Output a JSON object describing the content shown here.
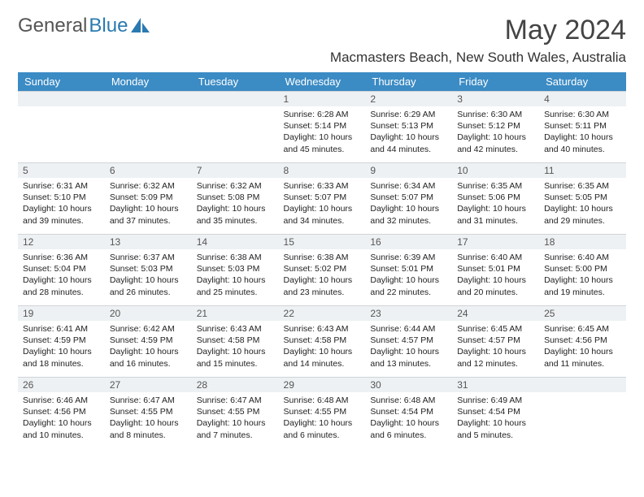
{
  "brand": {
    "name1": "General",
    "name2": "Blue"
  },
  "title": "May 2024",
  "location": "Macmasters Beach, New South Wales, Australia",
  "colors": {
    "header_bg": "#3b8bc4",
    "header_text": "#ffffff",
    "daybar_bg": "#eef1f3",
    "body_bg": "#ffffff",
    "text": "#333333",
    "logo_blue": "#2a7ab0"
  },
  "weekdays": [
    "Sunday",
    "Monday",
    "Tuesday",
    "Wednesday",
    "Thursday",
    "Friday",
    "Saturday"
  ],
  "layout": {
    "columns": 7,
    "rows": 5,
    "first_weekday_index": 3,
    "days_in_month": 31
  },
  "days": {
    "1": {
      "sunrise": "6:28 AM",
      "sunset": "5:14 PM",
      "daylight": "10 hours and 45 minutes."
    },
    "2": {
      "sunrise": "6:29 AM",
      "sunset": "5:13 PM",
      "daylight": "10 hours and 44 minutes."
    },
    "3": {
      "sunrise": "6:30 AM",
      "sunset": "5:12 PM",
      "daylight": "10 hours and 42 minutes."
    },
    "4": {
      "sunrise": "6:30 AM",
      "sunset": "5:11 PM",
      "daylight": "10 hours and 40 minutes."
    },
    "5": {
      "sunrise": "6:31 AM",
      "sunset": "5:10 PM",
      "daylight": "10 hours and 39 minutes."
    },
    "6": {
      "sunrise": "6:32 AM",
      "sunset": "5:09 PM",
      "daylight": "10 hours and 37 minutes."
    },
    "7": {
      "sunrise": "6:32 AM",
      "sunset": "5:08 PM",
      "daylight": "10 hours and 35 minutes."
    },
    "8": {
      "sunrise": "6:33 AM",
      "sunset": "5:07 PM",
      "daylight": "10 hours and 34 minutes."
    },
    "9": {
      "sunrise": "6:34 AM",
      "sunset": "5:07 PM",
      "daylight": "10 hours and 32 minutes."
    },
    "10": {
      "sunrise": "6:35 AM",
      "sunset": "5:06 PM",
      "daylight": "10 hours and 31 minutes."
    },
    "11": {
      "sunrise": "6:35 AM",
      "sunset": "5:05 PM",
      "daylight": "10 hours and 29 minutes."
    },
    "12": {
      "sunrise": "6:36 AM",
      "sunset": "5:04 PM",
      "daylight": "10 hours and 28 minutes."
    },
    "13": {
      "sunrise": "6:37 AM",
      "sunset": "5:03 PM",
      "daylight": "10 hours and 26 minutes."
    },
    "14": {
      "sunrise": "6:38 AM",
      "sunset": "5:03 PM",
      "daylight": "10 hours and 25 minutes."
    },
    "15": {
      "sunrise": "6:38 AM",
      "sunset": "5:02 PM",
      "daylight": "10 hours and 23 minutes."
    },
    "16": {
      "sunrise": "6:39 AM",
      "sunset": "5:01 PM",
      "daylight": "10 hours and 22 minutes."
    },
    "17": {
      "sunrise": "6:40 AM",
      "sunset": "5:01 PM",
      "daylight": "10 hours and 20 minutes."
    },
    "18": {
      "sunrise": "6:40 AM",
      "sunset": "5:00 PM",
      "daylight": "10 hours and 19 minutes."
    },
    "19": {
      "sunrise": "6:41 AM",
      "sunset": "4:59 PM",
      "daylight": "10 hours and 18 minutes."
    },
    "20": {
      "sunrise": "6:42 AM",
      "sunset": "4:59 PM",
      "daylight": "10 hours and 16 minutes."
    },
    "21": {
      "sunrise": "6:43 AM",
      "sunset": "4:58 PM",
      "daylight": "10 hours and 15 minutes."
    },
    "22": {
      "sunrise": "6:43 AM",
      "sunset": "4:58 PM",
      "daylight": "10 hours and 14 minutes."
    },
    "23": {
      "sunrise": "6:44 AM",
      "sunset": "4:57 PM",
      "daylight": "10 hours and 13 minutes."
    },
    "24": {
      "sunrise": "6:45 AM",
      "sunset": "4:57 PM",
      "daylight": "10 hours and 12 minutes."
    },
    "25": {
      "sunrise": "6:45 AM",
      "sunset": "4:56 PM",
      "daylight": "10 hours and 11 minutes."
    },
    "26": {
      "sunrise": "6:46 AM",
      "sunset": "4:56 PM",
      "daylight": "10 hours and 10 minutes."
    },
    "27": {
      "sunrise": "6:47 AM",
      "sunset": "4:55 PM",
      "daylight": "10 hours and 8 minutes."
    },
    "28": {
      "sunrise": "6:47 AM",
      "sunset": "4:55 PM",
      "daylight": "10 hours and 7 minutes."
    },
    "29": {
      "sunrise": "6:48 AM",
      "sunset": "4:55 PM",
      "daylight": "10 hours and 6 minutes."
    },
    "30": {
      "sunrise": "6:48 AM",
      "sunset": "4:54 PM",
      "daylight": "10 hours and 6 minutes."
    },
    "31": {
      "sunrise": "6:49 AM",
      "sunset": "4:54 PM",
      "daylight": "10 hours and 5 minutes."
    }
  },
  "labels": {
    "sunrise": "Sunrise:",
    "sunset": "Sunset:",
    "daylight": "Daylight:"
  }
}
